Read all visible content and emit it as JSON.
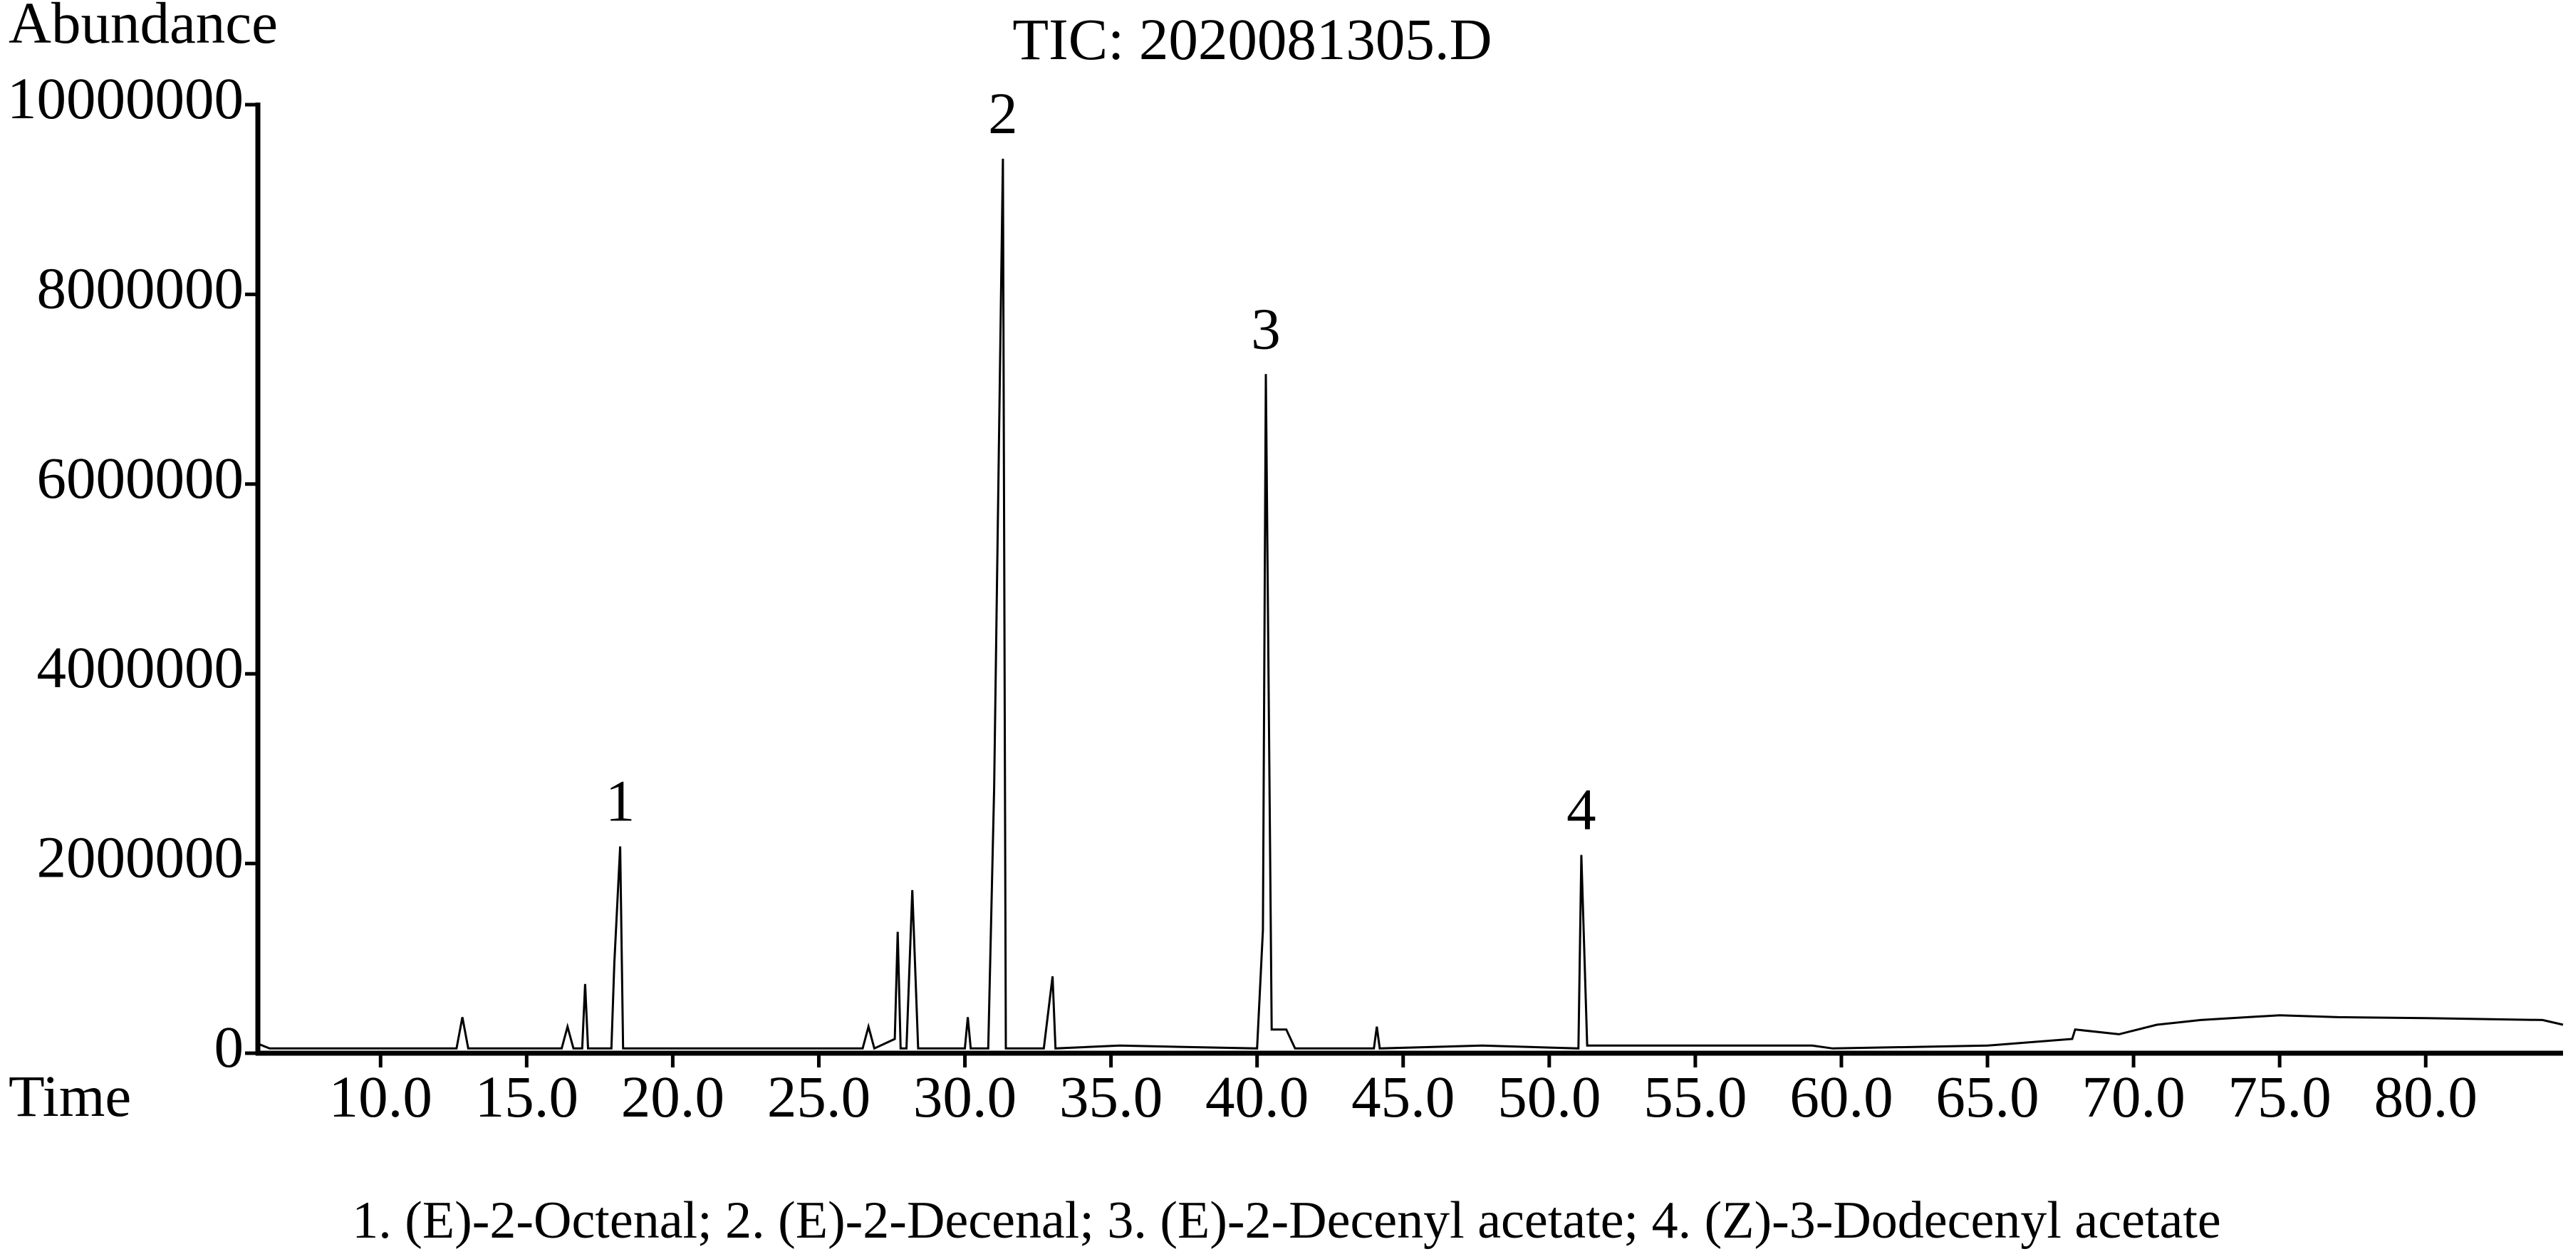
{
  "chart_data": {
    "type": "line",
    "title": "TIC: 2020081305.D",
    "y_label": "Abundance",
    "x_label": "Time",
    "caption": "1. (E)-2-Octenal; 2. (E)-2-Decenal; 3. (E)-2-Decenyl acetate; 4. (Z)-3-Dodecenyl acetate",
    "color": "#000000",
    "xlim": [
      5.8,
      84.7
    ],
    "ylim": [
      0,
      10000000
    ],
    "yticks": [
      0,
      2000000,
      4000000,
      6000000,
      8000000,
      10000000
    ],
    "xticks": [
      {
        "value": 10,
        "label": "10.0"
      },
      {
        "value": 15,
        "label": "15.0"
      },
      {
        "value": 20,
        "label": "20.0"
      },
      {
        "value": 25,
        "label": "25.0"
      },
      {
        "value": 30,
        "label": "30.0"
      },
      {
        "value": 35,
        "label": "35.0"
      },
      {
        "value": 40,
        "label": "40.0"
      },
      {
        "value": 45,
        "label": "45.0"
      },
      {
        "value": 50,
        "label": "50.0"
      },
      {
        "value": 55,
        "label": "55.0"
      },
      {
        "value": 60,
        "label": "60.0"
      },
      {
        "value": 65,
        "label": "65.0"
      },
      {
        "value": 70,
        "label": "70.0"
      },
      {
        "value": 75,
        "label": "75.0"
      },
      {
        "value": 80,
        "label": "80.0"
      }
    ],
    "x": [
      5.8,
      6.2,
      12.6,
      12.8,
      13.0,
      16.2,
      16.4,
      16.6,
      16.9,
      17.0,
      17.1,
      17.9,
      18.0,
      18.2,
      18.3,
      20.8,
      26.5,
      26.7,
      26.9,
      27.6,
      27.7,
      27.8,
      28.0,
      28.2,
      28.4,
      30.0,
      30.1,
      30.2,
      30.8,
      31.0,
      31.3,
      31.4,
      32.7,
      33.0,
      33.1,
      35.3,
      40.0,
      40.2,
      40.3,
      40.5,
      41.0,
      41.3,
      44.0,
      44.1,
      44.2,
      47.7,
      51.0,
      51.1,
      51.3,
      59.0,
      59.7,
      65.0,
      67.9,
      68.0,
      69.5,
      70.8,
      72.3,
      75.0,
      77.0,
      80.0,
      84.0,
      84.7
    ],
    "values": [
      100000,
      50000,
      50000,
      380000,
      50000,
      50000,
      280000,
      50000,
      50000,
      730000,
      50000,
      50000,
      950000,
      2180000,
      50000,
      50000,
      50000,
      280000,
      50000,
      150000,
      1280000,
      50000,
      50000,
      1720000,
      50000,
      50000,
      380000,
      50000,
      50000,
      2800000,
      9430000,
      50000,
      50000,
      810000,
      50000,
      80000,
      50000,
      1300000,
      7160000,
      250000,
      250000,
      50000,
      50000,
      280000,
      50000,
      80000,
      50000,
      2090000,
      80000,
      80000,
      50000,
      80000,
      150000,
      250000,
      200000,
      300000,
      350000,
      400000,
      380000,
      370000,
      350000,
      300000
    ],
    "annotations": [
      {
        "text": "1",
        "x": 18.2,
        "y": 2180000
      },
      {
        "text": "2",
        "x": 31.3,
        "y": 9430000
      },
      {
        "text": "3",
        "x": 40.3,
        "y": 7160000
      },
      {
        "text": "4",
        "x": 51.1,
        "y": 2090000
      }
    ]
  }
}
